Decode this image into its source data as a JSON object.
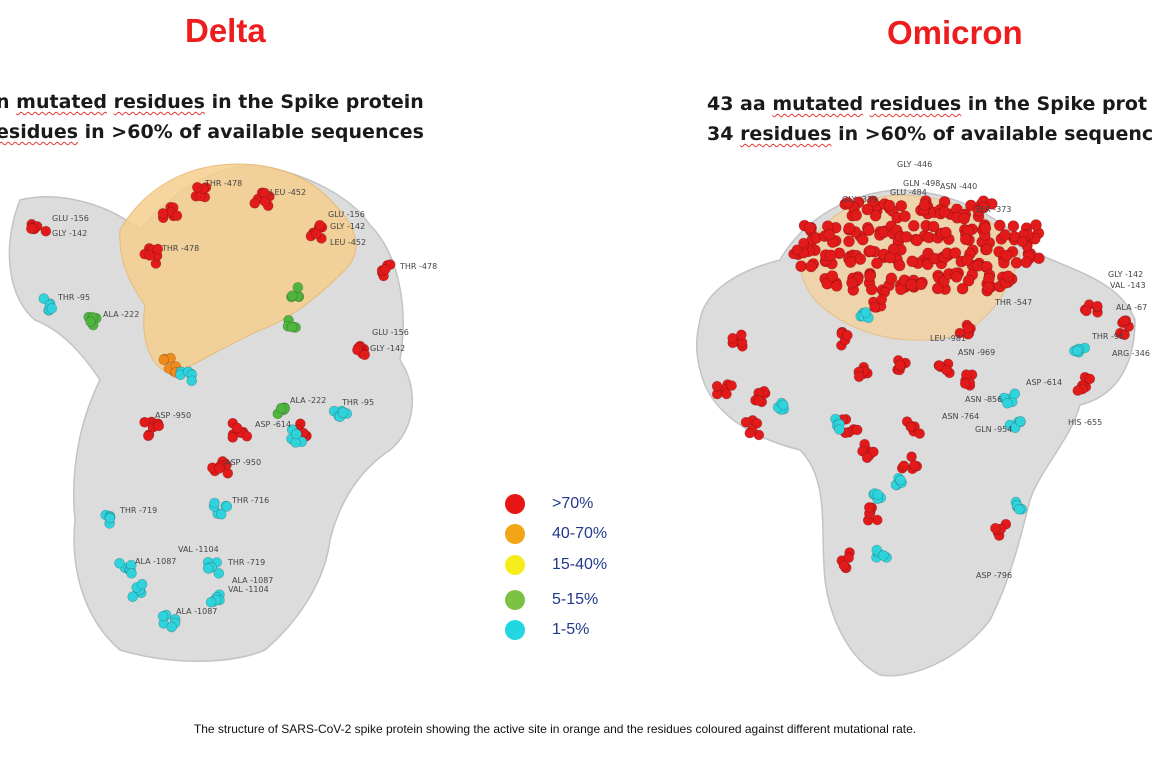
{
  "delta": {
    "title": "Delta",
    "line1_pre": "n ",
    "line1_word1": "mutated",
    "line1_mid": " ",
    "line1_word2": "residues",
    "line1_post": " in the Spike protein",
    "line2_pre": "esidues",
    "line2_post": " in >60% of available sequences",
    "labels": [
      "GLU -156",
      "GLY -142",
      "THR -478",
      "LEU -452",
      "GLU -156",
      "GLY -142",
      "LEU -452",
      "THR -478",
      "THR -95",
      "ALA -222",
      "THR -478",
      "GLU -156",
      "GLY -142",
      "ALA -222",
      "THR -95",
      "ASP -950",
      "ASP -614",
      "ASP -950",
      "THR -719",
      "THR -716",
      "VAL -1104",
      "ALA -1087",
      "THR -719",
      "ALA -1087",
      "VAL -1104",
      "ALA -1087"
    ]
  },
  "omicron": {
    "title": "Omicron",
    "line1_pre": "43 aa ",
    "line1_word1": "mutated",
    "line1_mid": " ",
    "line1_word2": "residues",
    "line1_post": " in the Spike prot",
    "line2_pre": "34 ",
    "line2_word": "residues",
    "line2_post": " in >60% of available sequenc",
    "labels": [
      "GLY -446",
      "GLN -498",
      "GLU -484",
      "ASN -440",
      "GLY -339",
      "SER -373",
      "GLY -142",
      "VAL -143",
      "ALA -67",
      "THR -95",
      "ARG -346",
      "THR -547",
      "LEU -981",
      "ASN -969",
      "ASP -614",
      "ASN -856",
      "HIS -655",
      "ASN -764",
      "GLN -954",
      "ASP -796"
    ]
  },
  "legend": [
    {
      "label": ">70%",
      "color": "#e81515"
    },
    {
      "label": "40-70%",
      "color": "#f2a515"
    },
    {
      "label": "15-40%",
      "color": "#f7ec1b"
    },
    {
      "label": "5-15%",
      "color": "#7cc242"
    },
    {
      "label": "1-5%",
      "color": "#22d7e2"
    }
  ],
  "caption": "The structure of SARS-CoV-2 spike protein showing the active site in orange and the residues coloured against different mutational rate."
}
